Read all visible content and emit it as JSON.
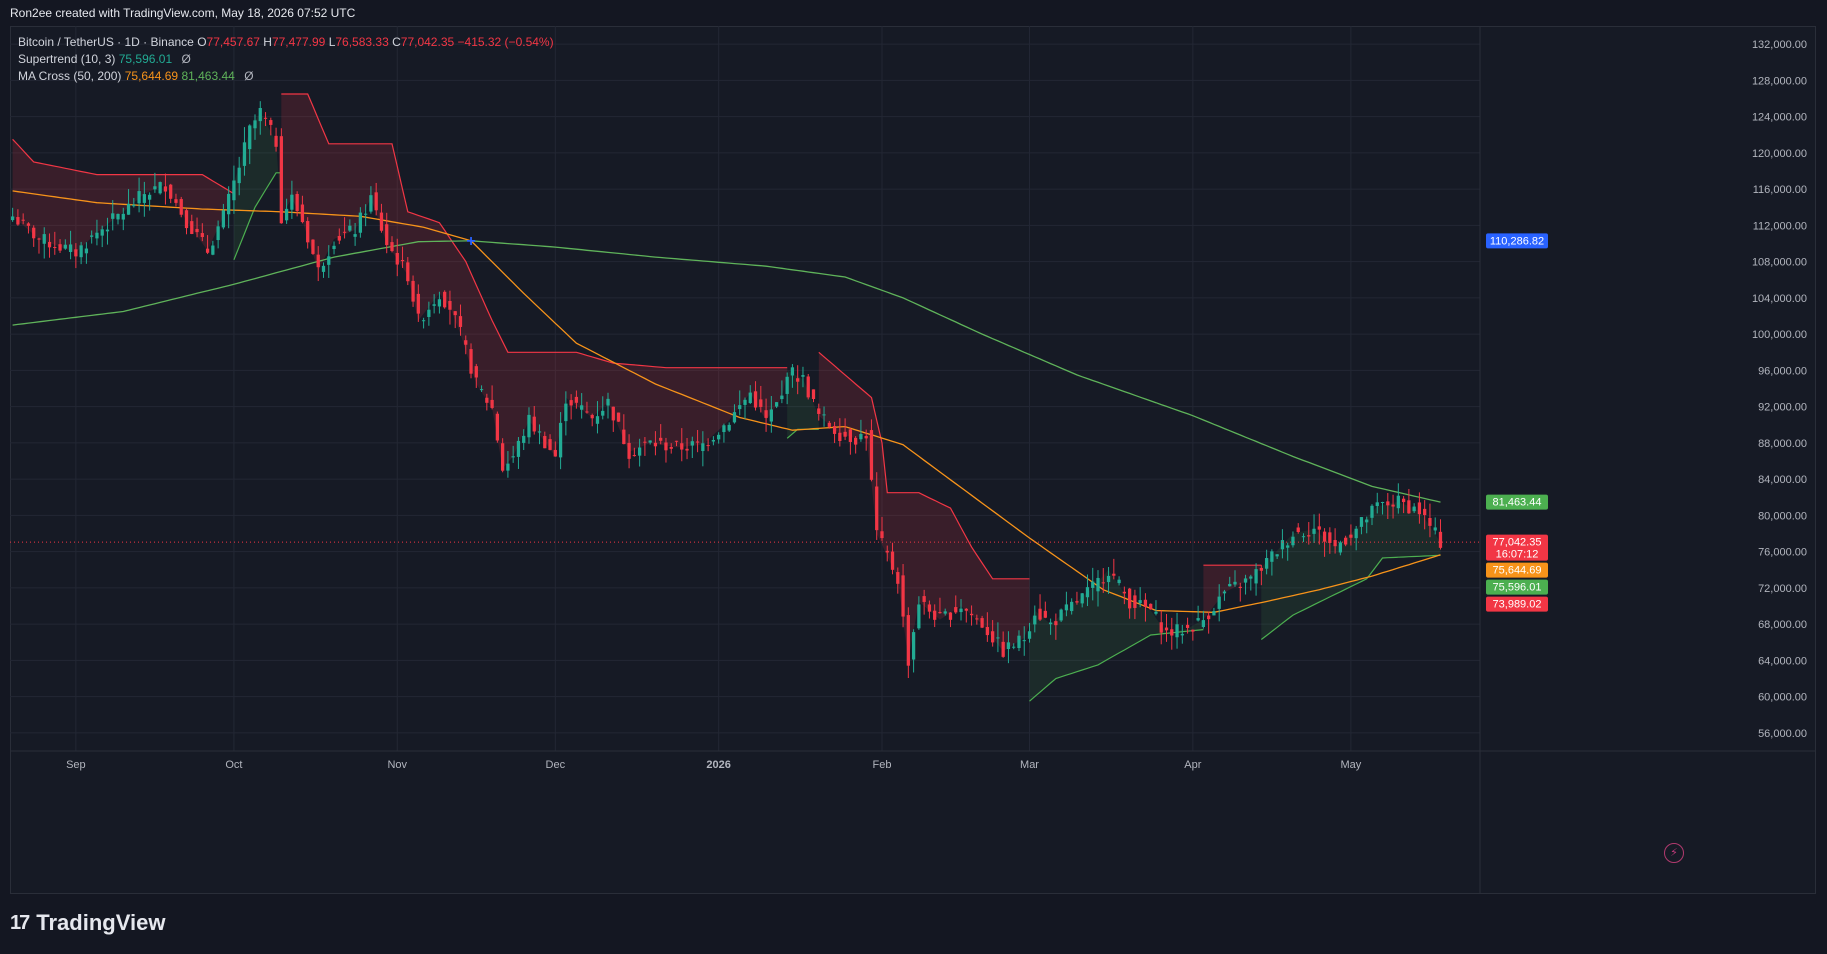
{
  "caption": "Ron2ee created with TradingView.com, May 18, 2026 07:52 UTC",
  "legend": {
    "symbol": "Bitcoin / TetherUS · 1D · Binance",
    "o_label": "O",
    "o_value": "77,457.67",
    "h_label": "H",
    "h_value": "77,477.99",
    "l_label": "L",
    "l_value": "76,583.33",
    "c_label": "C",
    "c_value": "77,042.35",
    "change": "−415.32 (−0.54%)",
    "supertrend_label": "Supertrend (10, 3)",
    "supertrend_value": "75,596.01",
    "ma_label": "MA Cross (50, 200)",
    "ma50_value": "75,644.69",
    "ma200_value": "81,463.44",
    "eye_icon": "Ø"
  },
  "footer": {
    "brand": "TradingView",
    "logo": "17"
  },
  "colors": {
    "background": "#161a25",
    "grid": "#232734",
    "up": "#22ab94",
    "down": "#f23645",
    "ma50": "#f7931a",
    "ma200": "#5fb35a",
    "st_up": "#4caf50",
    "st_down": "#f23645",
    "cross_marker": "#2962ff"
  },
  "chart_data": {
    "type": "candlestick",
    "symbol": "BTCUSDT",
    "interval": "1D",
    "ylim": [
      54000,
      134000
    ],
    "y_ticks": [
      "132,000.00",
      "128,000.00",
      "124,000.00",
      "120,000.00",
      "116,000.00",
      "112,000.00",
      "108,000.00",
      "104,000.00",
      "100,000.00",
      "96,000.00",
      "92,000.00",
      "88,000.00",
      "84,000.00",
      "80,000.00",
      "76,000.00",
      "72,000.00",
      "68,000.00",
      "64,000.00",
      "60,000.00",
      "56,000.00"
    ],
    "y_tick_values": [
      132000,
      128000,
      124000,
      120000,
      116000,
      112000,
      108000,
      104000,
      100000,
      96000,
      92000,
      88000,
      84000,
      80000,
      76000,
      72000,
      68000,
      64000,
      60000,
      56000
    ],
    "x_ticks": [
      {
        "label": "Sep",
        "date": "2025-09-01"
      },
      {
        "label": "Oct",
        "date": "2025-10-01"
      },
      {
        "label": "Nov",
        "date": "2025-11-01"
      },
      {
        "label": "Dec",
        "date": "2025-12-01"
      },
      {
        "label": "2026",
        "date": "2026-01-01"
      },
      {
        "label": "Feb",
        "date": "2026-02-01"
      },
      {
        "label": "Mar",
        "date": "2026-03-01"
      },
      {
        "label": "Apr",
        "date": "2026-04-01"
      },
      {
        "label": "May",
        "date": "2026-05-01"
      }
    ],
    "x_start": "2025-08-20",
    "x_end": "2026-05-18",
    "close_anchors": [
      [
        "2025-08-20",
        113000
      ],
      [
        "2025-08-25",
        110500
      ],
      [
        "2025-09-01",
        109000
      ],
      [
        "2025-09-05",
        111200
      ],
      [
        "2025-09-10",
        113500
      ],
      [
        "2025-09-14",
        115500
      ],
      [
        "2025-09-18",
        116500
      ],
      [
        "2025-09-22",
        112500
      ],
      [
        "2025-09-26",
        109200
      ],
      [
        "2025-09-29",
        113000
      ],
      [
        "2025-10-02",
        118500
      ],
      [
        "2025-10-04",
        122500
      ],
      [
        "2025-10-06",
        124500
      ],
      [
        "2025-10-09",
        121200
      ],
      [
        "2025-10-10",
        113000
      ],
      [
        "2025-10-12",
        115000
      ],
      [
        "2025-10-14",
        112500
      ],
      [
        "2025-10-17",
        107000
      ],
      [
        "2025-10-20",
        110500
      ],
      [
        "2025-10-24",
        111500
      ],
      [
        "2025-10-27",
        115000
      ],
      [
        "2025-10-30",
        110000
      ],
      [
        "2025-11-03",
        106500
      ],
      [
        "2025-11-05",
        101500
      ],
      [
        "2025-11-09",
        104500
      ],
      [
        "2025-11-11",
        103000
      ],
      [
        "2025-11-13",
        100000
      ],
      [
        "2025-11-16",
        94500
      ],
      [
        "2025-11-19",
        91800
      ],
      [
        "2025-11-21",
        85200
      ],
      [
        "2025-11-23",
        86500
      ],
      [
        "2025-11-26",
        90500
      ],
      [
        "2025-12-01",
        86500
      ],
      [
        "2025-12-03",
        93000
      ],
      [
        "2025-12-08",
        90800
      ],
      [
        "2025-12-11",
        92500
      ],
      [
        "2025-12-15",
        87000
      ],
      [
        "2025-12-19",
        88000
      ],
      [
        "2025-12-24",
        87500
      ],
      [
        "2025-12-29",
        87800
      ],
      [
        "2026-01-03",
        90500
      ],
      [
        "2026-01-07",
        93500
      ],
      [
        "2026-01-10",
        90500
      ],
      [
        "2026-01-13",
        93000
      ],
      [
        "2026-01-14",
        96000
      ],
      [
        "2026-01-17",
        95000
      ],
      [
        "2026-01-20",
        91000
      ],
      [
        "2026-01-24",
        89000
      ],
      [
        "2026-01-27",
        88500
      ],
      [
        "2026-01-29",
        89000
      ],
      [
        "2026-01-31",
        78000
      ],
      [
        "2026-02-04",
        73000
      ],
      [
        "2026-02-06",
        64000
      ],
      [
        "2026-02-08",
        70500
      ],
      [
        "2026-02-12",
        68500
      ],
      [
        "2026-02-16",
        70000
      ],
      [
        "2026-02-20",
        68000
      ],
      [
        "2026-02-24",
        65000
      ],
      [
        "2026-02-28",
        66500
      ],
      [
        "2026-03-02",
        69500
      ],
      [
        "2026-03-05",
        68000
      ],
      [
        "2026-03-09",
        70000
      ],
      [
        "2026-03-13",
        72000
      ],
      [
        "2026-03-16",
        74000
      ],
      [
        "2026-03-20",
        70500
      ],
      [
        "2026-03-24",
        69500
      ],
      [
        "2026-03-27",
        67000
      ],
      [
        "2026-03-31",
        67500
      ],
      [
        "2026-04-03",
        68500
      ],
      [
        "2026-04-07",
        71500
      ],
      [
        "2026-04-12",
        73000
      ],
      [
        "2026-04-16",
        75500
      ],
      [
        "2026-04-20",
        78000
      ],
      [
        "2026-04-24",
        78500
      ],
      [
        "2026-04-28",
        76500
      ],
      [
        "2026-05-02",
        78500
      ],
      [
        "2026-05-06",
        81000
      ],
      [
        "2026-05-10",
        81500
      ],
      [
        "2026-05-14",
        80500
      ],
      [
        "2026-05-18",
        77042
      ]
    ],
    "ma50_anchors": [
      [
        "2025-08-20",
        115800
      ],
      [
        "2025-09-05",
        114500
      ],
      [
        "2025-09-25",
        113800
      ],
      [
        "2025-10-10",
        113500
      ],
      [
        "2025-10-25",
        113000
      ],
      [
        "2025-11-06",
        111800
      ],
      [
        "2025-11-15",
        110300
      ],
      [
        "2025-11-25",
        104500
      ],
      [
        "2025-12-05",
        99000
      ],
      [
        "2025-12-20",
        94500
      ],
      [
        "2026-01-05",
        90800
      ],
      [
        "2026-01-15",
        89400
      ],
      [
        "2026-01-25",
        89800
      ],
      [
        "2026-02-05",
        87800
      ],
      [
        "2026-02-15",
        83500
      ],
      [
        "2026-03-01",
        77500
      ],
      [
        "2026-03-15",
        71800
      ],
      [
        "2026-03-25",
        69500
      ],
      [
        "2026-04-05",
        69300
      ],
      [
        "2026-04-15",
        70500
      ],
      [
        "2026-04-25",
        71800
      ],
      [
        "2026-05-05",
        73300
      ],
      [
        "2026-05-18",
        75645
      ]
    ],
    "ma200_anchors": [
      [
        "2025-08-20",
        101000
      ],
      [
        "2025-09-10",
        102500
      ],
      [
        "2025-10-01",
        105500
      ],
      [
        "2025-10-20",
        108500
      ],
      [
        "2025-11-05",
        110200
      ],
      [
        "2025-11-15",
        110300
      ],
      [
        "2025-12-01",
        109600
      ],
      [
        "2025-12-20",
        108500
      ],
      [
        "2026-01-10",
        107500
      ],
      [
        "2026-01-25",
        106300
      ],
      [
        "2026-02-05",
        104000
      ],
      [
        "2026-02-20",
        100000
      ],
      [
        "2026-03-10",
        95500
      ],
      [
        "2026-04-01",
        91000
      ],
      [
        "2026-04-20",
        86500
      ],
      [
        "2026-05-05",
        83200
      ],
      [
        "2026-05-18",
        81463
      ]
    ],
    "supertrend_up_segments": [
      [
        [
          "2025-10-01",
          108200
        ],
        [
          "2025-10-05",
          114000
        ],
        [
          "2025-10-09",
          117800
        ],
        [
          "2025-10-10",
          117800
        ]
      ],
      [
        [
          "2026-01-14",
          88500
        ],
        [
          "2026-01-16",
          89500
        ],
        [
          "2026-01-20",
          89500
        ]
      ],
      [
        [
          "2026-03-01",
          59500
        ],
        [
          "2026-03-06",
          62000
        ],
        [
          "2026-03-14",
          63500
        ],
        [
          "2026-03-24",
          66800
        ],
        [
          "2026-04-03",
          67400
        ]
      ],
      [
        [
          "2026-04-14",
          66300
        ],
        [
          "2026-04-20",
          69000
        ],
        [
          "2026-04-27",
          71000
        ],
        [
          "2026-05-04",
          73000
        ],
        [
          "2026-05-07",
          75300
        ],
        [
          "2026-05-18",
          75596
        ]
      ]
    ],
    "supertrend_down_segments": [
      [
        [
          "2025-08-20",
          121500
        ],
        [
          "2025-08-24",
          119000
        ],
        [
          "2025-09-05",
          117600
        ],
        [
          "2025-09-25",
          117600
        ],
        [
          "2025-10-01",
          115500
        ]
      ],
      [
        [
          "2025-10-10",
          126500
        ],
        [
          "2025-10-15",
          126500
        ],
        [
          "2025-10-19",
          121000
        ],
        [
          "2025-10-31",
          121000
        ],
        [
          "2025-11-03",
          113500
        ],
        [
          "2025-11-09",
          112300
        ],
        [
          "2025-11-14",
          108000
        ],
        [
          "2025-11-19",
          101500
        ],
        [
          "2025-11-22",
          98000
        ],
        [
          "2025-12-05",
          98000
        ],
        [
          "2025-12-12",
          96800
        ],
        [
          "2025-12-22",
          96300
        ],
        [
          "2026-01-14",
          96300
        ]
      ],
      [
        [
          "2026-01-20",
          98000
        ],
        [
          "2026-01-23",
          96500
        ],
        [
          "2026-01-30",
          93000
        ],
        [
          "2026-02-01",
          88000
        ],
        [
          "2026-02-02",
          82500
        ],
        [
          "2026-02-08",
          82500
        ],
        [
          "2026-02-14",
          80800
        ],
        [
          "2026-02-18",
          76500
        ],
        [
          "2026-02-22",
          73000
        ],
        [
          "2026-03-01",
          73000
        ]
      ],
      [
        [
          "2026-04-03",
          74500
        ],
        [
          "2026-04-14",
          74500
        ]
      ]
    ],
    "cross_marker": {
      "date": "2025-11-15",
      "value": 110300
    },
    "price_labels": [
      {
        "value": 110286.82,
        "text": "110,286.82",
        "color": "#2962ff"
      },
      {
        "value": 81463.44,
        "text": "81,463.44",
        "color": "#4caf50"
      },
      {
        "value": 77042.35,
        "text": "77,042.35",
        "subtext": "16:07:12",
        "color": "#f23645"
      },
      {
        "value": 75644.69,
        "text": "75,644.69",
        "color": "#f7931a"
      },
      {
        "value": 75596.01,
        "text": "75,596.01",
        "color": "#4caf50"
      },
      {
        "value": 73989.02,
        "text": "73,989.02",
        "color": "#f23645"
      }
    ],
    "last_close": 77042.35,
    "grid": true
  }
}
